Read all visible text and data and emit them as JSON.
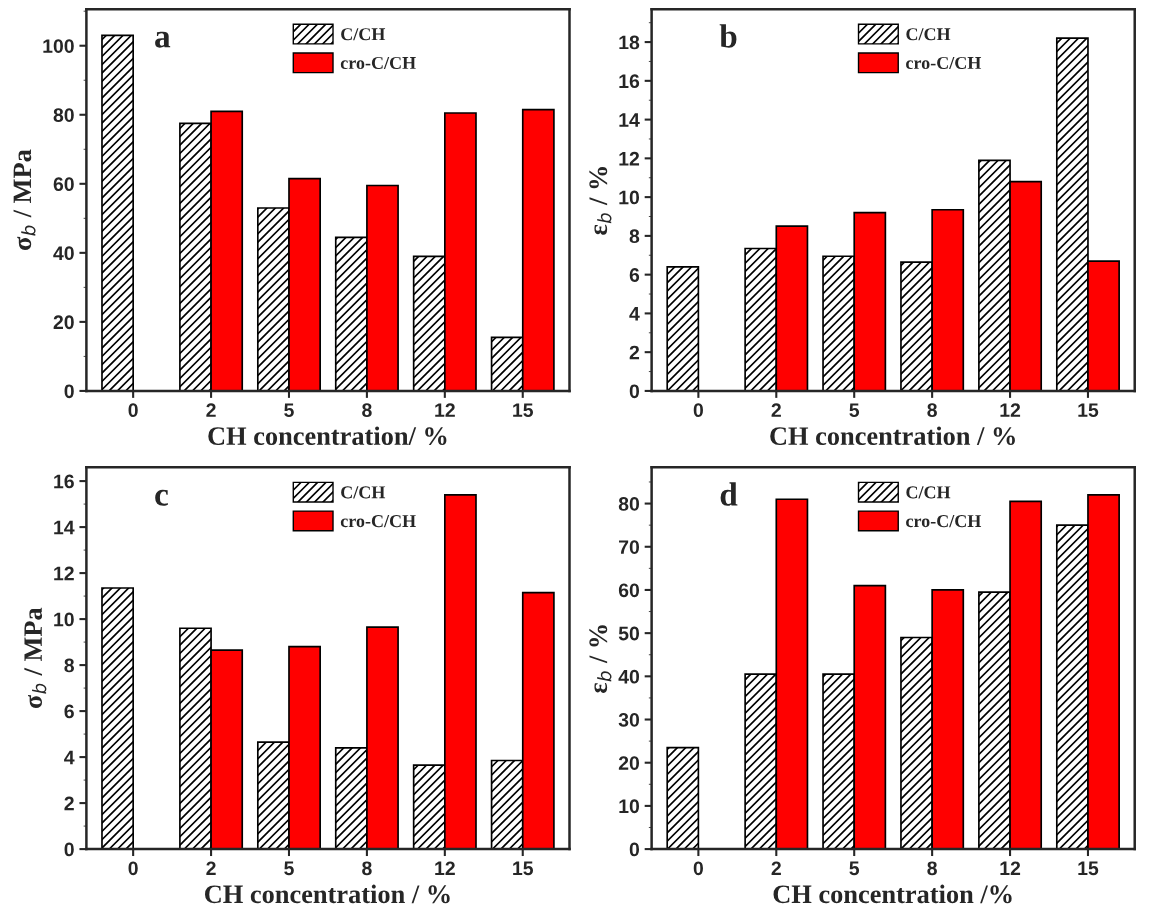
{
  "chart_data": [
    {
      "type": "bar",
      "categories": [
        "0",
        "2",
        "5",
        "8",
        "12",
        "15"
      ],
      "xlabel": "CH concentration/ %",
      "ylabel": "σ$_{b}$ / MPa",
      "ylim": [
        0,
        110.6
      ],
      "yticks": [
        0,
        20,
        40,
        60,
        80,
        100
      ],
      "legend": "top right",
      "annotations": [
        "a"
      ],
      "series": [
        {
          "name": "C/CH",
          "color": "#000000",
          "values": [
            103,
            77.5,
            53,
            44.5,
            39,
            15.5
          ]
        },
        {
          "name": "cro-C/CH",
          "color": "#ff0000",
          "values": [
            null,
            81,
            61.5,
            59.5,
            80.5,
            81.5
          ]
        }
      ]
    },
    {
      "type": "bar",
      "categories": [
        "0",
        "2",
        "5",
        "8",
        "12",
        "15"
      ],
      "xlabel": "CH concentration / %",
      "ylabel": "ε$_{b}$ / %",
      "ylim": [
        0,
        19.7
      ],
      "yticks": [
        0,
        2,
        4,
        6,
        8,
        10,
        12,
        14,
        16,
        18
      ],
      "legend": "top right",
      "annotations": [
        "b"
      ],
      "series": [
        {
          "name": "C/CH",
          "color": "#000000",
          "values": [
            6.4,
            7.35,
            6.95,
            6.65,
            11.9,
            18.2
          ]
        },
        {
          "name": "cro-C/CH",
          "color": "#ff0000",
          "values": [
            null,
            8.5,
            9.2,
            9.35,
            10.8,
            6.7
          ]
        }
      ]
    },
    {
      "type": "bar",
      "categories": [
        "0",
        "2",
        "5",
        "8",
        "12",
        "15"
      ],
      "xlabel": "CH concentration / %",
      "ylabel": "σ$_{b}$ / MPa",
      "ylim": [
        0,
        16.6
      ],
      "yticks": [
        0,
        2,
        4,
        6,
        8,
        10,
        12,
        14,
        16
      ],
      "legend": "top right",
      "annotations": [
        "c"
      ],
      "series": [
        {
          "name": "C/CH",
          "color": "#000000",
          "values": [
            11.35,
            9.6,
            4.65,
            4.4,
            3.65,
            3.85
          ]
        },
        {
          "name": "cro-C/CH",
          "color": "#ff0000",
          "values": [
            null,
            8.65,
            8.8,
            9.65,
            15.4,
            11.15
          ]
        }
      ]
    },
    {
      "type": "bar",
      "categories": [
        "0",
        "2",
        "5",
        "8",
        "12",
        "15"
      ],
      "xlabel": "CH concentration /%",
      "ylabel": "ε$_{b}$ / %",
      "ylim": [
        0,
        88.4
      ],
      "yticks": [
        0,
        10,
        20,
        30,
        40,
        50,
        60,
        70,
        80
      ],
      "legend": "top right",
      "annotations": [
        "d"
      ],
      "series": [
        {
          "name": "C/CH",
          "color": "#000000",
          "values": [
            23.5,
            40.5,
            40.5,
            49,
            59.5,
            75
          ]
        },
        {
          "name": "cro-C/CH",
          "color": "#ff0000",
          "values": [
            null,
            81,
            61,
            60,
            80.5,
            82
          ]
        }
      ]
    }
  ]
}
